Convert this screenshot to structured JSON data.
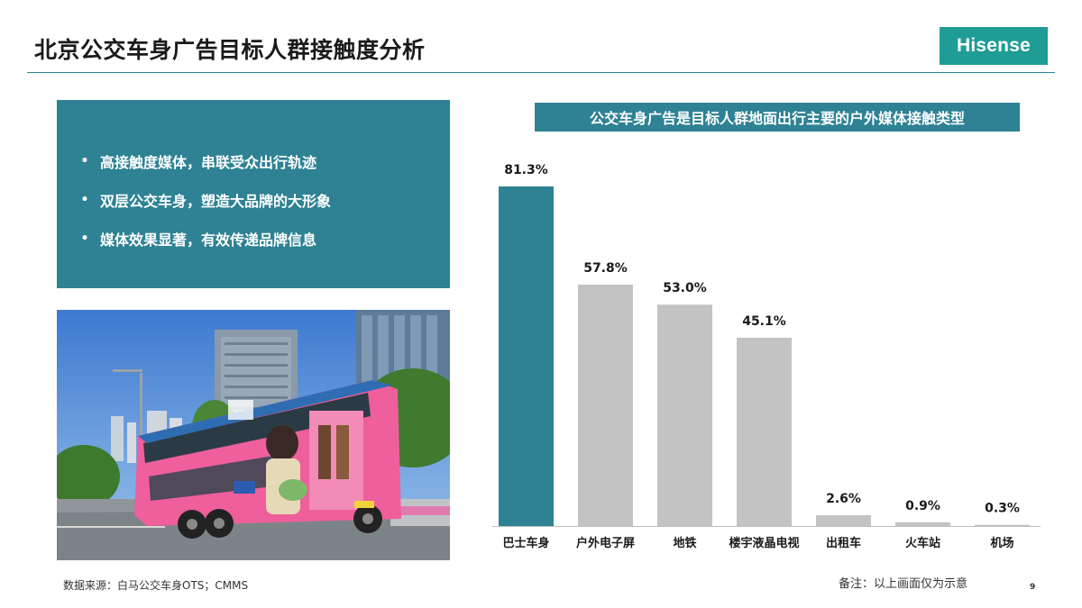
{
  "title": "北京公交车身广告目标人群接触度分析",
  "logo": {
    "text": "Hisense",
    "color": "#1f9c96"
  },
  "bullets": [
    "高接触度媒体，串联受众出行轨迹",
    "双层公交车身，塑造大品牌的大形象",
    "媒体效果显著，有效传递品牌信息"
  ],
  "bullet_symbol": "•",
  "chart_header": "公交车身广告是目标人群地面出行主要的户外媒体接触类型",
  "chart_data": {
    "type": "bar",
    "title": "公交车身广告是目标人群地面出行主要的户外媒体接触类型",
    "categories": [
      "巴士车身",
      "户外电子屏",
      "地铁",
      "楼宇液晶电视",
      "出租车",
      "火车站",
      "机场"
    ],
    "values": [
      81.3,
      57.8,
      53.0,
      45.1,
      2.6,
      0.9,
      0.3
    ],
    "value_labels": [
      "81.3%",
      "57.8%",
      "53.0%",
      "45.1%",
      "2.6%",
      "0.9%",
      "0.3%"
    ],
    "highlight_index": 0,
    "colors": {
      "highlight": "#2e8294",
      "default": "#c3c3c3",
      "axis": "#bfbfbf"
    },
    "ylim": [
      0,
      100
    ],
    "grid": false,
    "legend": "none"
  },
  "source": "数据来源：白马公交车身OTS；CMMS",
  "note": "备注：以上画面仅为示意",
  "page_number": "9"
}
